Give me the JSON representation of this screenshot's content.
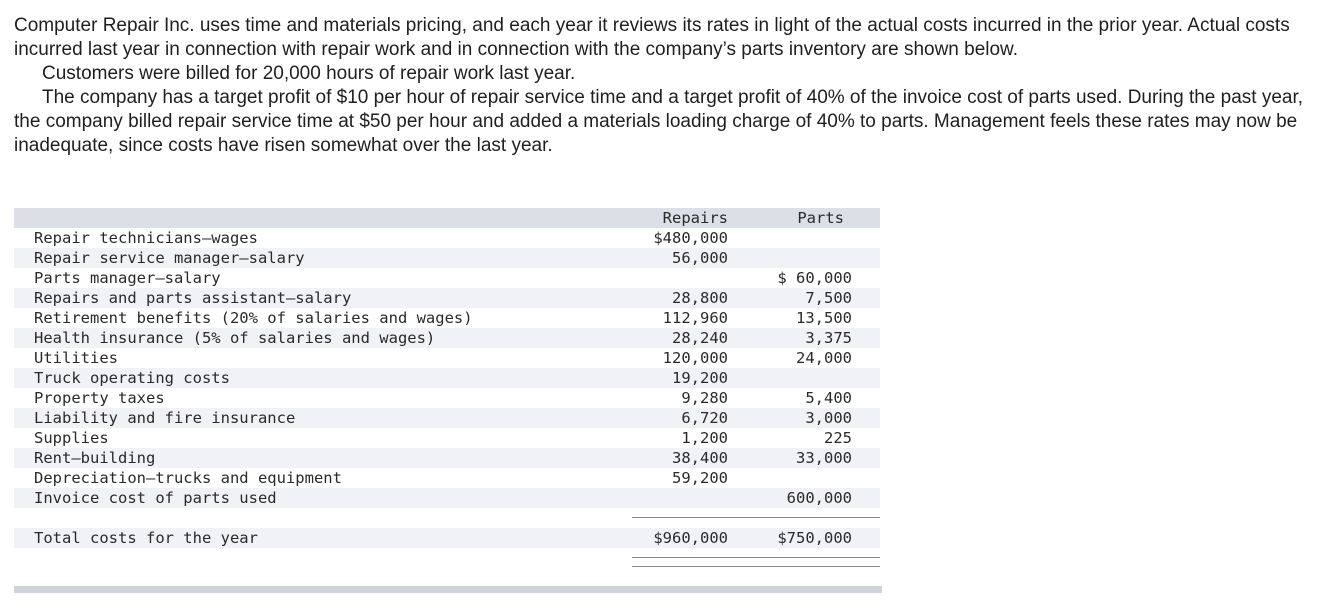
{
  "intro": {
    "p1": "Computer Repair Inc. uses time and materials pricing, and each year it reviews its rates in light of the actual costs incurred in the prior year. Actual costs incurred last year in connection with repair work and in connection with the company’s parts inventory are shown below.",
    "p2": "Customers were billed for 20,000 hours of repair work last year.",
    "p3": "The company has a target profit of $10 per hour of repair service time and a target profit of 40% of the invoice cost of parts used. During the past year, the company billed repair service time at $50 per hour and added a materials loading charge of 40% to parts. Management feels these rates may now be inadequate, since costs have risen somewhat over the last year."
  },
  "table": {
    "col_repairs": "Repairs",
    "col_parts": "Parts",
    "rows": [
      {
        "label": "Repair technicians—wages",
        "repairs": "$480,000",
        "parts": ""
      },
      {
        "label": "Repair service manager—salary",
        "repairs": "56,000",
        "parts": ""
      },
      {
        "label": "Parts manager—salary",
        "repairs": "",
        "parts": "$ 60,000"
      },
      {
        "label": "Repairs and parts assistant—salary",
        "repairs": "28,800",
        "parts": "7,500"
      },
      {
        "label": "Retirement benefits (20% of salaries and wages)",
        "repairs": "112,960",
        "parts": "13,500"
      },
      {
        "label": "Health insurance (5% of salaries and wages)",
        "repairs": "28,240",
        "parts": "3,375"
      },
      {
        "label": "Utilities",
        "repairs": "120,000",
        "parts": "24,000"
      },
      {
        "label": "Truck operating costs",
        "repairs": "19,200",
        "parts": ""
      },
      {
        "label": "Property taxes",
        "repairs": "9,280",
        "parts": "5,400"
      },
      {
        "label": "Liability and fire insurance",
        "repairs": "6,720",
        "parts": "3,000"
      },
      {
        "label": "Supplies",
        "repairs": "1,200",
        "parts": "225"
      },
      {
        "label": "Rent—building",
        "repairs": "38,400",
        "parts": "33,000"
      },
      {
        "label": "Depreciation—trucks and equipment",
        "repairs": "59,200",
        "parts": ""
      },
      {
        "label": "Invoice cost of parts used",
        "repairs": "",
        "parts": "600,000"
      }
    ],
    "total": {
      "label": "Total costs for the year",
      "repairs": "$960,000",
      "parts": "$750,000"
    }
  }
}
